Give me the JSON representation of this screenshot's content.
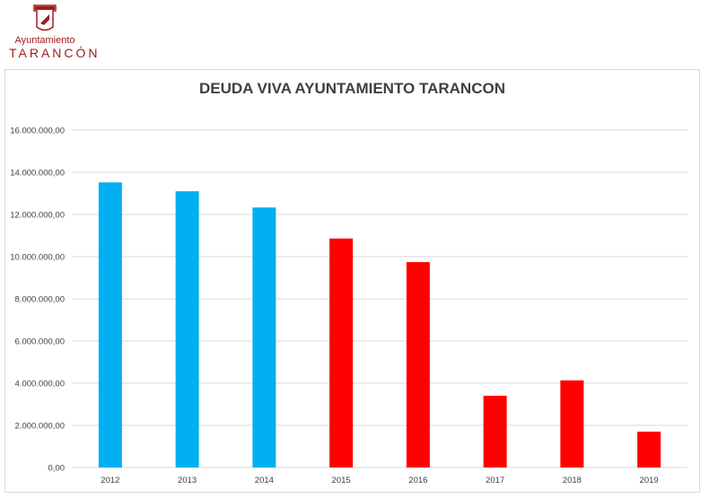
{
  "logo": {
    "line1": "Ayuntamiento",
    "line2": "TARANCÓN",
    "color": "#a01c1c"
  },
  "chart_data": {
    "type": "bar",
    "title": "DEUDA VIVA AYUNTAMIENTO TARANCON",
    "categories": [
      "2012",
      "2013",
      "2014",
      "2015",
      "2016",
      "2017",
      "2018",
      "2019"
    ],
    "values": [
      13520000,
      13100000,
      12330000,
      10860000,
      9740000,
      3400000,
      4130000,
      1700000
    ],
    "bar_colors": [
      "#00b0f0",
      "#00b0f0",
      "#00b0f0",
      "#ff0000",
      "#ff0000",
      "#ff0000",
      "#ff0000",
      "#ff0000"
    ],
    "ylim": [
      0,
      16000000
    ],
    "yticks": [
      "0,00",
      "2.000.000,00",
      "4.000.000,00",
      "6.000.000,00",
      "8.000.000,00",
      "10.000.000,00",
      "12.000.000,00",
      "14.000.000,00",
      "16.000.000,00"
    ],
    "xlabel": "",
    "ylabel": "",
    "grid": true,
    "legend": "none"
  }
}
